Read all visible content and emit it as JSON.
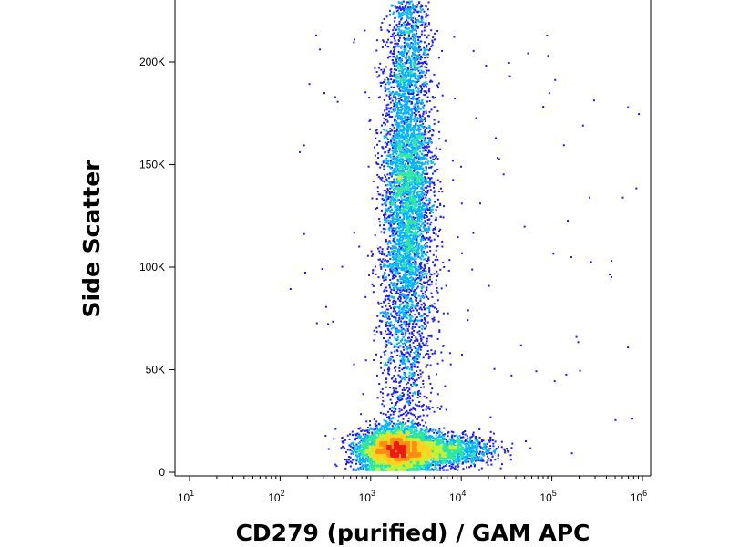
{
  "chart_data": {
    "type": "scatter",
    "subtype": "flow-cytometry-density-dot-plot",
    "xlabel": "CD279 (purified) / GAM APC",
    "ylabel": "Side Scatter",
    "x_scale": "log",
    "xlim": [
      10,
      1000000
    ],
    "ylim": [
      0,
      230000
    ],
    "x_ticks": [
      {
        "value": 10,
        "base": "10",
        "exp": "1"
      },
      {
        "value": 100,
        "base": "10",
        "exp": "2"
      },
      {
        "value": 1000,
        "base": "10",
        "exp": "3"
      },
      {
        "value": 10000,
        "base": "10",
        "exp": "4"
      },
      {
        "value": 100000,
        "base": "10",
        "exp": "5"
      },
      {
        "value": 1000000,
        "base": "10",
        "exp": "6"
      }
    ],
    "y_ticks": [
      {
        "value": 0,
        "label": "0"
      },
      {
        "value": 50000,
        "label": "50K"
      },
      {
        "value": 100000,
        "label": "100K"
      },
      {
        "value": 150000,
        "label": "150K"
      },
      {
        "value": 200000,
        "label": "200K"
      }
    ],
    "grid": false,
    "colormap": [
      "#1a1aff",
      "#00b4ff",
      "#2ee6a0",
      "#c8f032",
      "#ffd21e",
      "#ff8c14",
      "#e61e14"
    ],
    "populations": [
      {
        "x_center": 1900,
        "x_spread_log": 0.2,
        "y_center": 11000,
        "y_spread": 5000,
        "density": "very high"
      },
      {
        "x_center": 2500,
        "x_spread_log": 0.15,
        "y_center": 140000,
        "y_spread": 35000,
        "density": "moderate"
      },
      {
        "x_center": 9000,
        "x_spread_log": 0.3,
        "y_center": 11000,
        "y_spread": 4000,
        "density": "moderate"
      }
    ]
  }
}
